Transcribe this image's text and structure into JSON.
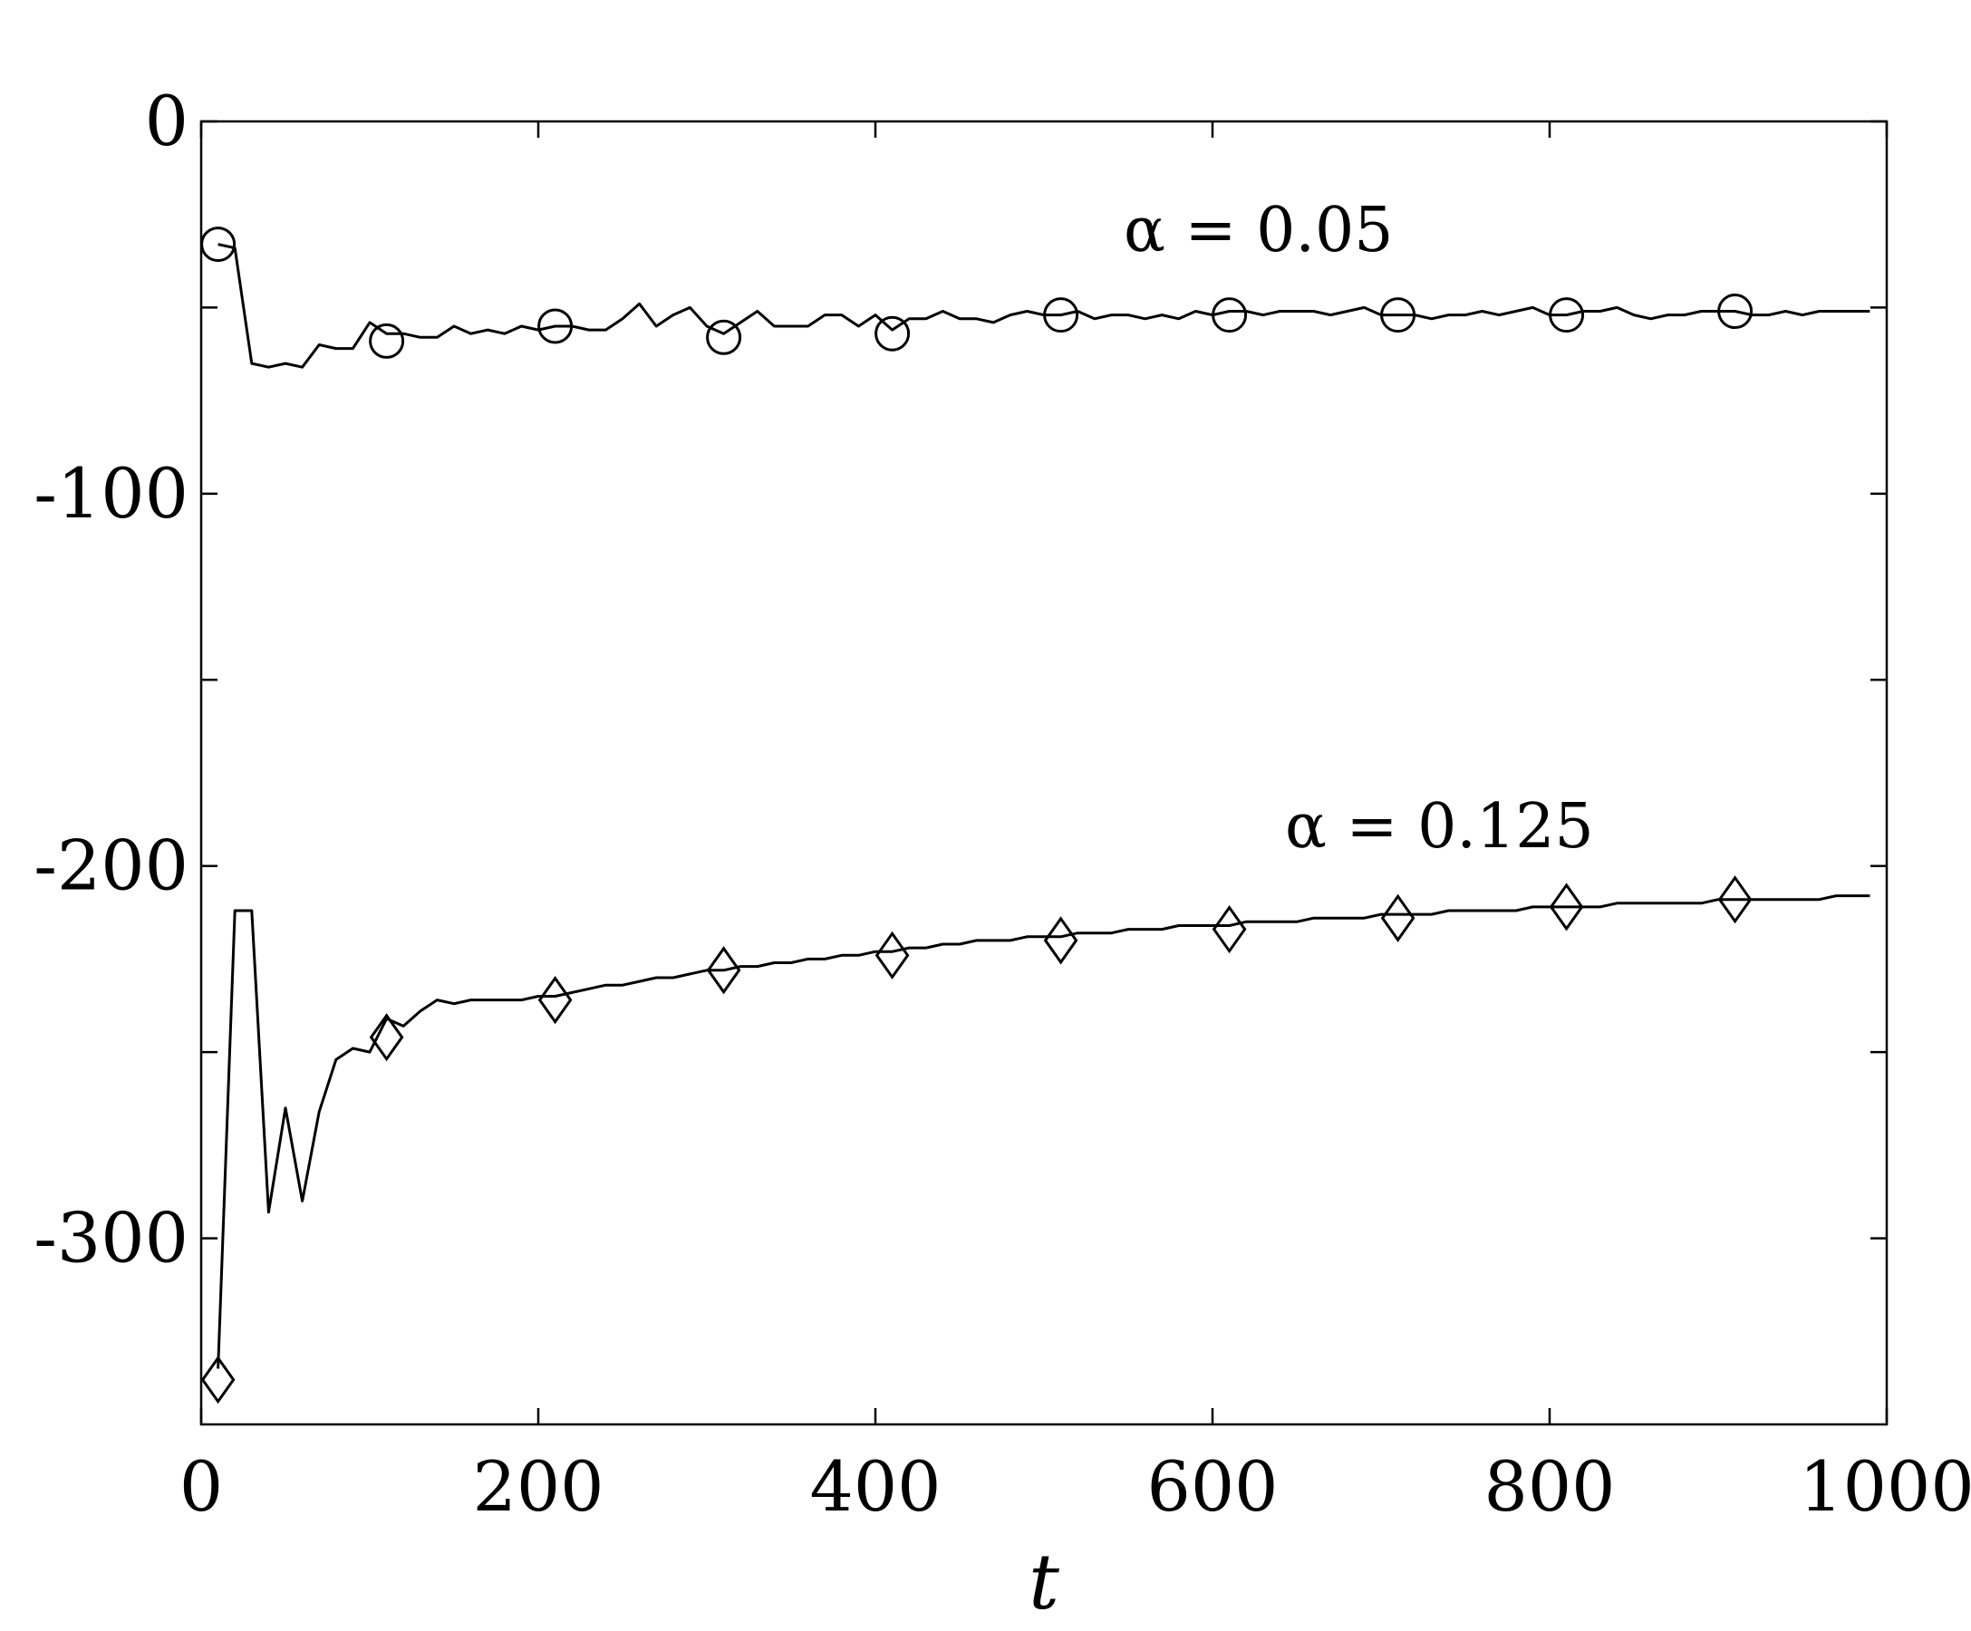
{
  "chart_data": {
    "type": "line",
    "title": "",
    "xlabel": "t",
    "ylabel": "",
    "xlim": [
      0,
      1000
    ],
    "ylim": [
      -350,
      0
    ],
    "xticks": [
      0,
      200,
      400,
      600,
      800,
      1000
    ],
    "xtick_labels": [
      "0",
      "200",
      "400",
      "600",
      "800",
      "1000"
    ],
    "yticks": [
      0,
      -50,
      -100,
      -150,
      -200,
      -250,
      -300
    ],
    "ytick_labels": [
      "0",
      "",
      "-100",
      "",
      "-200",
      "",
      "-300"
    ],
    "grid": false,
    "color": "#000000",
    "annotations": [
      {
        "text": "α = 0.05",
        "x": 635,
        "y": -29
      },
      {
        "text": "α = 0.125",
        "x": 732,
        "y": -190
      }
    ],
    "series": [
      {
        "marker": "circle",
        "x": [
          10,
          20,
          30,
          40,
          50,
          60,
          70,
          80,
          90,
          100,
          110,
          120,
          130,
          140,
          150,
          160,
          170,
          180,
          190,
          200,
          210,
          220,
          230,
          240,
          250,
          260,
          270,
          280,
          290,
          300,
          310,
          320,
          330,
          340,
          350,
          360,
          370,
          380,
          390,
          400,
          410,
          420,
          430,
          440,
          450,
          460,
          470,
          480,
          490,
          500,
          510,
          520,
          530,
          540,
          550,
          560,
          570,
          580,
          590,
          600,
          610,
          620,
          630,
          640,
          650,
          660,
          670,
          680,
          690,
          700,
          710,
          720,
          730,
          740,
          750,
          760,
          770,
          780,
          790,
          800,
          810,
          820,
          830,
          840,
          850,
          860,
          870,
          880,
          890,
          900,
          910,
          920,
          930,
          940,
          950,
          960,
          970,
          980,
          990
        ],
        "values": [
          -33,
          -34,
          -65,
          -66,
          -65,
          -66,
          -60,
          -61,
          -61,
          -54,
          -57,
          -57,
          -58,
          -58,
          -55,
          -57,
          -56,
          -57,
          -55,
          -56,
          -55,
          -55,
          -56,
          -56,
          -53,
          -49,
          -55,
          -52,
          -50,
          -55,
          -57,
          -54,
          -51,
          -55,
          -55,
          -55,
          -52,
          -52,
          -55,
          -52,
          -56,
          -53,
          -53,
          -51,
          -53,
          -53,
          -54,
          -52,
          -51,
          -52,
          -52,
          -51,
          -53,
          -52,
          -52,
          -53,
          -52,
          -53,
          -51,
          -52,
          -51,
          -51,
          -52,
          -51,
          -51,
          -51,
          -52,
          -51,
          -50,
          -52,
          -52,
          -52,
          -53,
          -52,
          -52,
          -51,
          -52,
          -51,
          -50,
          -52,
          -52,
          -51,
          -51,
          -50,
          -52,
          -53,
          -52,
          -52,
          -51,
          -51,
          -51,
          -52,
          -52,
          -51,
          -52,
          -51,
          -51,
          -51,
          -51
        ],
        "marker_x": [
          10,
          110,
          210,
          310,
          410,
          510,
          610,
          710,
          810,
          910
        ],
        "marker_values": [
          -33,
          -59,
          -55,
          -58,
          -57,
          -52,
          -52,
          -52,
          -52,
          -51
        ]
      },
      {
        "marker": "diamond",
        "x": [
          10,
          20,
          30,
          40,
          50,
          60,
          70,
          80,
          90,
          100,
          110,
          120,
          130,
          140,
          150,
          160,
          170,
          180,
          190,
          200,
          210,
          220,
          230,
          240,
          250,
          260,
          270,
          280,
          290,
          300,
          310,
          320,
          330,
          340,
          350,
          360,
          370,
          380,
          390,
          400,
          410,
          420,
          430,
          440,
          450,
          460,
          470,
          480,
          490,
          500,
          510,
          520,
          530,
          540,
          550,
          560,
          570,
          580,
          590,
          600,
          610,
          620,
          630,
          640,
          650,
          660,
          670,
          680,
          690,
          700,
          710,
          720,
          730,
          740,
          750,
          760,
          770,
          780,
          790,
          800,
          810,
          820,
          830,
          840,
          850,
          860,
          870,
          880,
          890,
          900,
          910,
          920,
          930,
          940,
          950,
          960,
          970,
          980,
          990
        ],
        "values": [
          -335,
          -212,
          -212,
          -293,
          -265,
          -290,
          -266,
          -252,
          -249,
          -250,
          -241,
          -243,
          -239,
          -236,
          -237,
          -236,
          -236,
          -236,
          -236,
          -235,
          -235,
          -234,
          -233,
          -232,
          -232,
          -231,
          -230,
          -230,
          -229,
          -228,
          -228,
          -227,
          -227,
          -226,
          -226,
          -225,
          -225,
          -224,
          -224,
          -223,
          -223,
          -222,
          -222,
          -221,
          -221,
          -220,
          -220,
          -220,
          -219,
          -219,
          -219,
          -218,
          -218,
          -218,
          -217,
          -217,
          -217,
          -216,
          -216,
          -216,
          -216,
          -215,
          -215,
          -215,
          -215,
          -214,
          -214,
          -214,
          -214,
          -213,
          -213,
          -213,
          -213,
          -212,
          -212,
          -212,
          -212,
          -212,
          -211,
          -211,
          -211,
          -211,
          -211,
          -210,
          -210,
          -210,
          -210,
          -210,
          -210,
          -209,
          -209,
          -209,
          -209,
          -209,
          -209,
          -209,
          -208,
          -208,
          -208
        ],
        "marker_x": [
          10,
          110,
          210,
          310,
          410,
          510,
          610,
          710,
          810,
          910
        ],
        "marker_values": [
          -338,
          -246,
          -236,
          -228,
          -224,
          -220,
          -217,
          -214,
          -211,
          -209
        ]
      }
    ]
  }
}
